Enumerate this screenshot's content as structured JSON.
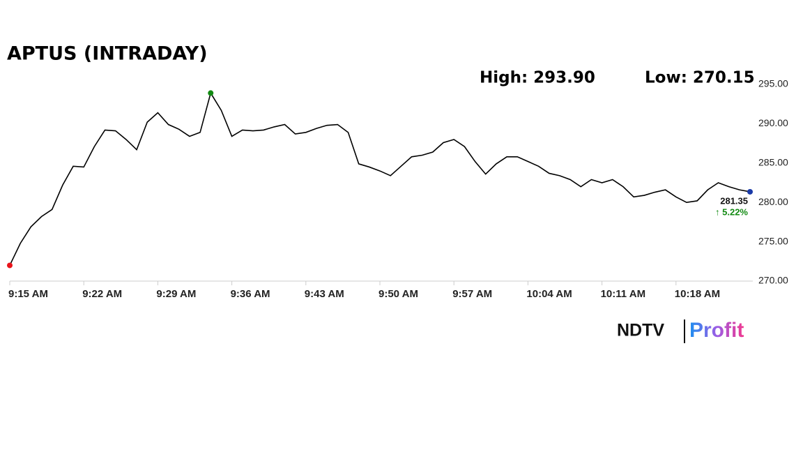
{
  "chart_data": {
    "type": "line",
    "title": "APTUS (INTRADAY)",
    "annotations": {
      "high": "High: 293.90",
      "low": "Low: 270.15",
      "change": "↑ 5.22%"
    },
    "logo": {
      "left": "NDTV",
      "right": "Profit"
    },
    "x": [
      "9:15 AM",
      "9:16 AM",
      "9:17 AM",
      "9:18 AM",
      "9:19 AM",
      "9:20 AM",
      "9:21 AM",
      "9:22 AM",
      "9:23 AM",
      "9:24 AM",
      "9:25 AM",
      "9:26 AM",
      "9:27 AM",
      "9:28 AM",
      "9:29 AM",
      "9:30 AM",
      "9:31 AM",
      "9:32 AM",
      "9:33 AM",
      "9:34 AM",
      "9:35 AM",
      "9:36 AM",
      "9:37 AM",
      "9:38 AM",
      "9:39 AM",
      "9:40 AM",
      "9:41 AM",
      "9:42 AM",
      "9:43 AM",
      "9:44 AM",
      "9:45 AM",
      "9:46 AM",
      "9:47 AM",
      "9:48 AM",
      "9:49 AM",
      "9:50 AM",
      "9:51 AM",
      "9:52 AM",
      "9:53 AM",
      "9:54 AM",
      "9:55 AM",
      "9:56 AM",
      "9:57 AM",
      "9:58 AM",
      "9:59 AM",
      "10:00 AM",
      "10:01 AM",
      "10:02 AM",
      "10:03 AM",
      "10:04 AM",
      "10:05 AM",
      "10:06 AM",
      "10:07 AM",
      "10:08 AM",
      "10:09 AM",
      "10:10 AM",
      "10:11 AM",
      "10:12 AM",
      "10:13 AM",
      "10:14 AM",
      "10:15 AM",
      "10:16 AM",
      "10:17 AM",
      "10:18 AM",
      "10:19 AM",
      "10:20 AM",
      "10:21 AM",
      "10:22 AM",
      "10:23 AM",
      "10:24 AM",
      "10:25 AM"
    ],
    "series": [
      {
        "name": "APTUS",
        "color": "#000000",
        "values": [
          272.0,
          274.8,
          276.9,
          278.2,
          279.1,
          282.2,
          284.6,
          284.5,
          287.1,
          289.2,
          289.1,
          288.0,
          286.7,
          290.2,
          291.4,
          289.9,
          289.3,
          288.4,
          288.9,
          293.9,
          291.7,
          288.4,
          289.2,
          289.1,
          289.2,
          289.6,
          289.9,
          288.7,
          288.9,
          289.4,
          289.8,
          289.9,
          288.9,
          284.9,
          284.5,
          284.0,
          283.4,
          284.6,
          285.8,
          286.0,
          286.4,
          287.6,
          288.0,
          287.1,
          285.2,
          283.6,
          284.9,
          285.8,
          285.8,
          285.2,
          284.6,
          283.7,
          283.4,
          282.9,
          282.0,
          282.9,
          282.5,
          282.9,
          282.0,
          280.7,
          280.9,
          281.3,
          281.6,
          280.7,
          280.0,
          280.2,
          281.6,
          282.5,
          282.0,
          281.6,
          281.35
        ]
      }
    ],
    "marker_colors": {
      "start": "#e8141b",
      "high": "#128a12",
      "end": "#1a3aa8"
    },
    "change_color": "#128a12",
    "xlim": [
      "9:15 AM",
      "10:25 AM"
    ],
    "xticks": [
      "9:15 AM",
      "9:22 AM",
      "9:29 AM",
      "9:36 AM",
      "9:43 AM",
      "9:50 AM",
      "9:57 AM",
      "10:04 AM",
      "10:11 AM",
      "10:18 AM"
    ],
    "ylim": [
      270,
      295
    ],
    "yticks": [
      {
        "value": 270,
        "label": "270.00"
      },
      {
        "value": 275,
        "label": "275.00"
      },
      {
        "value": 280,
        "label": "280.00"
      },
      {
        "value": 285,
        "label": "285.00"
      },
      {
        "value": 290,
        "label": "290.00"
      },
      {
        "value": 295,
        "label": "295.00"
      }
    ],
    "grid": false
  }
}
